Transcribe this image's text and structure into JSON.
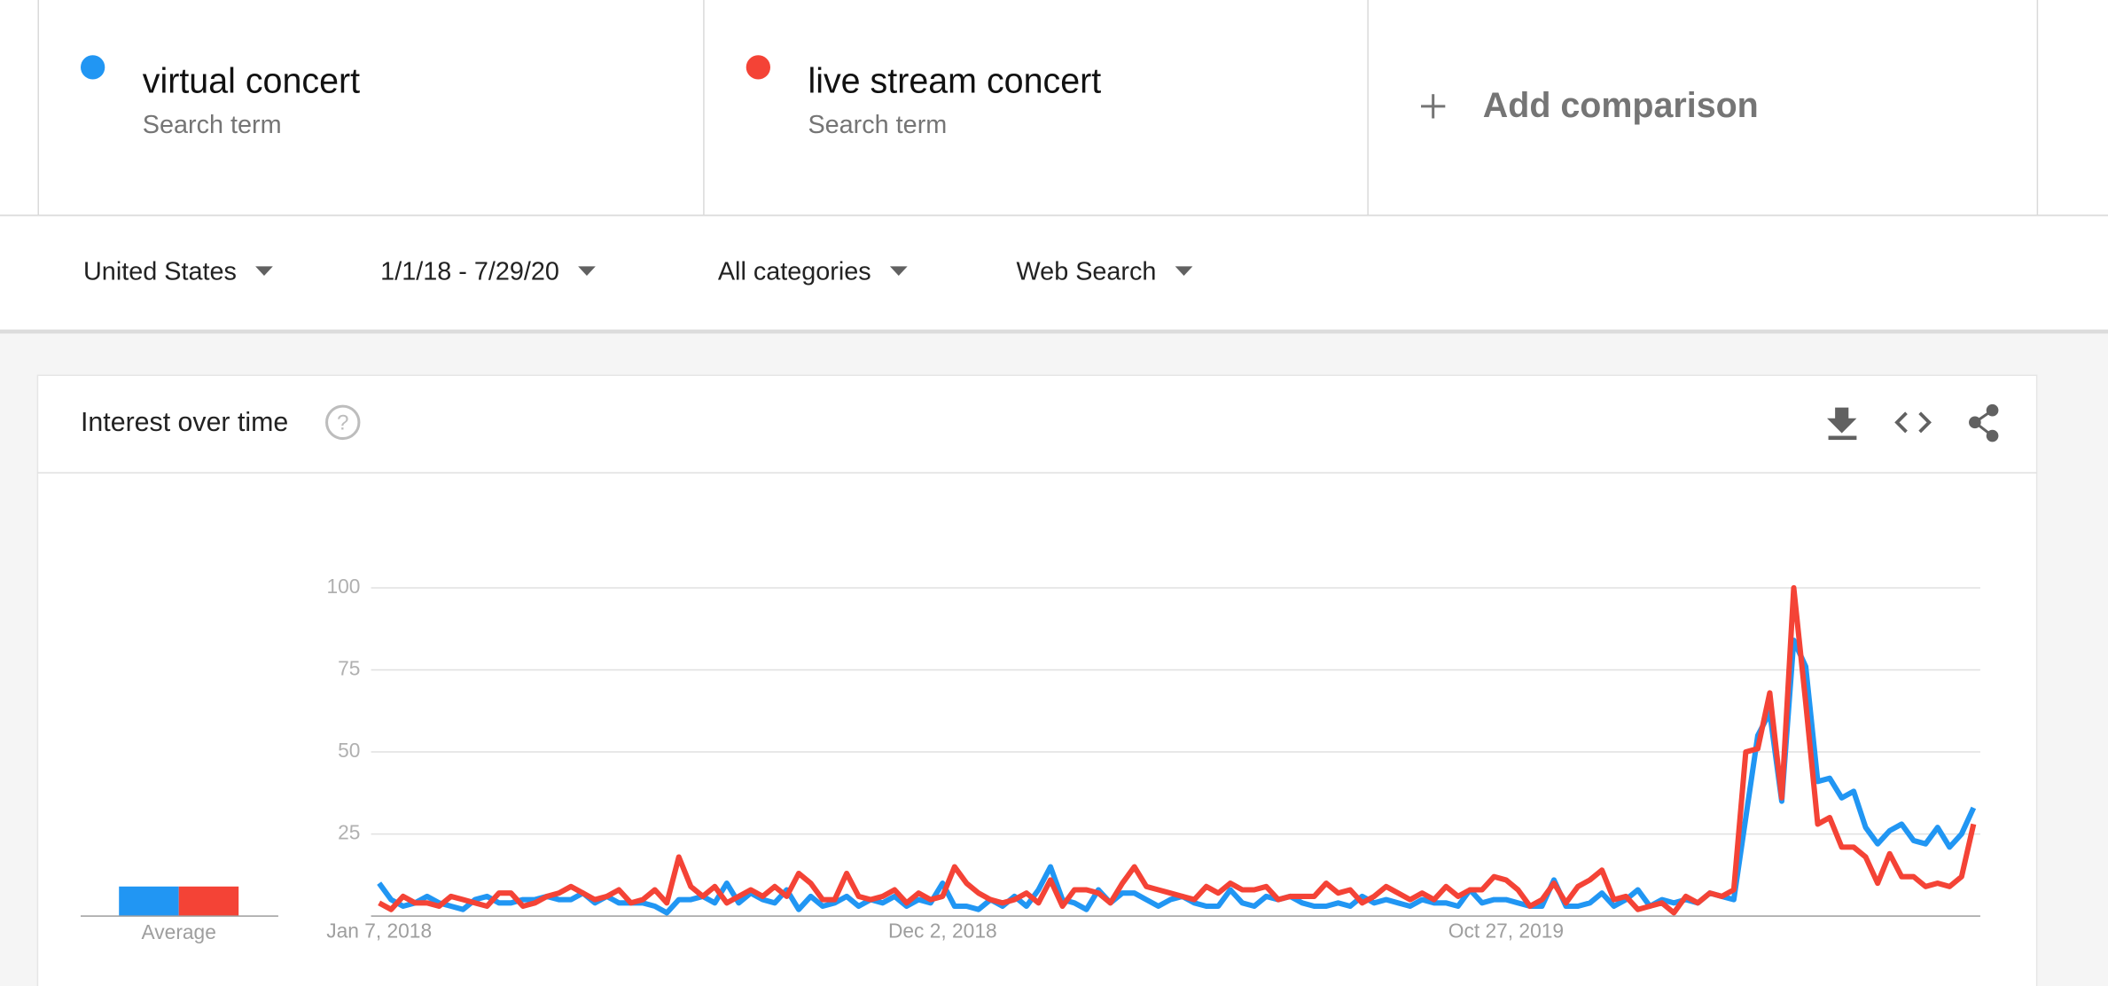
{
  "search_terms_label": "Search term",
  "add_comparison": "Add comparison",
  "filters": [
    "United States",
    "1/1/18 - 7/29/20",
    "All categories",
    "Web Search"
  ],
  "panel": {
    "title": "Interest over time",
    "help": "?"
  },
  "chart_data": [
    {
      "type": "line",
      "categories": [
        "Jan 7, 2018",
        null,
        null,
        null,
        null,
        null,
        null,
        null,
        null,
        null,
        null,
        null,
        null,
        null,
        null,
        null,
        null,
        null,
        null,
        null,
        null,
        null,
        null,
        null,
        null,
        null,
        null,
        null,
        null,
        null,
        null,
        null,
        null,
        null,
        null,
        null,
        null,
        null,
        null,
        null,
        null,
        null,
        null,
        null,
        null,
        null,
        null,
        "Dec 2, 2018",
        null,
        null,
        null,
        null,
        null,
        null,
        null,
        null,
        null,
        null,
        null,
        null,
        null,
        null,
        null,
        null,
        null,
        null,
        null,
        null,
        null,
        null,
        null,
        null,
        null,
        null,
        null,
        null,
        null,
        null,
        null,
        null,
        null,
        null,
        null,
        null,
        null,
        null,
        null,
        null,
        null,
        null,
        null,
        null,
        null,
        null,
        "Oct 27, 2019",
        null,
        null,
        null,
        null,
        null,
        null,
        null,
        null,
        null,
        null,
        null,
        null,
        null,
        null,
        null,
        null,
        null,
        null,
        null,
        null,
        null,
        null,
        null,
        null,
        null,
        null,
        null,
        null,
        null,
        null,
        null,
        null,
        null,
        null,
        null,
        null,
        null,
        null,
        null
      ],
      "series": [
        {
          "name": "virtual concert",
          "color": "#2196f3",
          "values": [
            10,
            5,
            3,
            4,
            6,
            4,
            3,
            2,
            5,
            6,
            4,
            4,
            5,
            5,
            6,
            5,
            5,
            7,
            4,
            6,
            4,
            4,
            4,
            3,
            1,
            5,
            5,
            6,
            4,
            10,
            4,
            7,
            5,
            4,
            8,
            2,
            6,
            3,
            4,
            6,
            3,
            5,
            4,
            6,
            3,
            5,
            4,
            10,
            3,
            3,
            2,
            5,
            3,
            6,
            3,
            8,
            15,
            5,
            4,
            2,
            8,
            4,
            7,
            7,
            5,
            3,
            5,
            6,
            4,
            3,
            3,
            8,
            4,
            3,
            6,
            5,
            6,
            4,
            3,
            3,
            4,
            3,
            6,
            4,
            5,
            4,
            3,
            5,
            4,
            4,
            3,
            8,
            4,
            5,
            5,
            4,
            3,
            3,
            11,
            3,
            3,
            4,
            7,
            3,
            5,
            8,
            3,
            5,
            4,
            5,
            4,
            7,
            6,
            5,
            30,
            55,
            62,
            35,
            84,
            76,
            41,
            42,
            36,
            38,
            27,
            22,
            26,
            28,
            23,
            22,
            27,
            21,
            25,
            33
          ]
        },
        {
          "name": "live stream concert",
          "color": "#f44336",
          "values": [
            4,
            2,
            6,
            4,
            4,
            3,
            6,
            5,
            4,
            3,
            7,
            7,
            3,
            4,
            6,
            7,
            9,
            7,
            5,
            6,
            8,
            4,
            5,
            8,
            4,
            18,
            9,
            6,
            9,
            4,
            6,
            8,
            6,
            9,
            6,
            13,
            10,
            5,
            5,
            13,
            6,
            5,
            6,
            8,
            4,
            7,
            5,
            6,
            15,
            10,
            7,
            5,
            4,
            5,
            7,
            4,
            11,
            3,
            8,
            8,
            7,
            4,
            10,
            15,
            9,
            8,
            7,
            6,
            5,
            9,
            7,
            10,
            8,
            8,
            9,
            5,
            6,
            6,
            6,
            10,
            7,
            8,
            4,
            6,
            9,
            7,
            5,
            7,
            5,
            9,
            6,
            8,
            8,
            12,
            11,
            8,
            3,
            5,
            10,
            4,
            9,
            11,
            14,
            5,
            6,
            2,
            3,
            4,
            1,
            6,
            4,
            7,
            6,
            8,
            50,
            51,
            68,
            36,
            100,
            65,
            28,
            30,
            21,
            21,
            18,
            10,
            19,
            12,
            12,
            9,
            10,
            9,
            12,
            28
          ]
        }
      ],
      "ylim": [
        0,
        100
      ],
      "yticks": [
        25,
        50,
        75,
        100
      ],
      "grid": true
    },
    {
      "type": "bar",
      "categories": [
        "Average"
      ],
      "series": [
        {
          "color": "#2196f3",
          "values": [
            9
          ]
        },
        {
          "color": "#f44336",
          "values": [
            9
          ]
        }
      ],
      "ylim": [
        0,
        100
      ]
    }
  ]
}
